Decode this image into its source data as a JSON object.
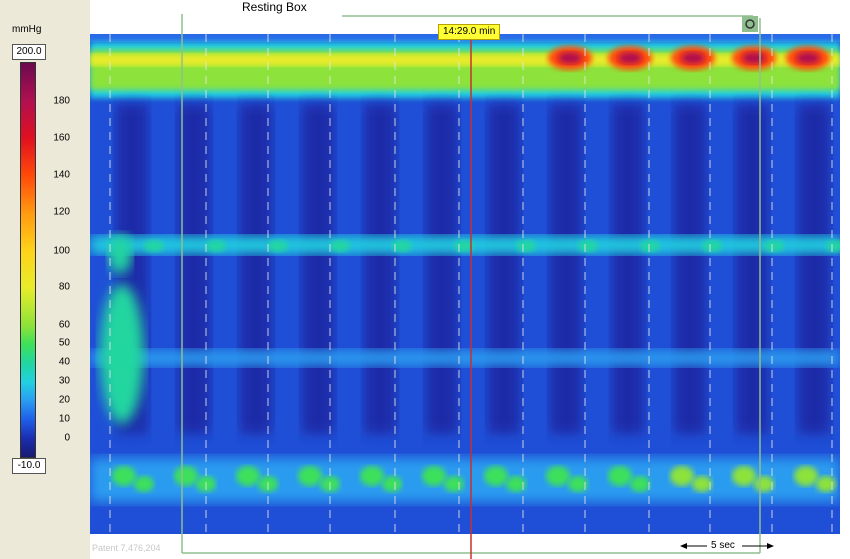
{
  "colorbar": {
    "unit": "mmHg",
    "max_label": "200.0",
    "min_label": "-10.0",
    "ticks": [
      180,
      160,
      140,
      120,
      100,
      80,
      60,
      50,
      40,
      30,
      20,
      10,
      0
    ],
    "stops": [
      {
        "v": -10,
        "color": "#1a1a70"
      },
      {
        "v": 0,
        "color": "#1b2eb0"
      },
      {
        "v": 10,
        "color": "#1f5ee8"
      },
      {
        "v": 20,
        "color": "#2a9cf0"
      },
      {
        "v": 30,
        "color": "#22d0e0"
      },
      {
        "v": 40,
        "color": "#22d6a0"
      },
      {
        "v": 50,
        "color": "#3ee05a"
      },
      {
        "v": 60,
        "color": "#8de23a"
      },
      {
        "v": 80,
        "color": "#e8ec2a"
      },
      {
        "v": 100,
        "color": "#ffd21a"
      },
      {
        "v": 120,
        "color": "#ff9a10"
      },
      {
        "v": 140,
        "color": "#ff4a0a"
      },
      {
        "v": 160,
        "color": "#e01020"
      },
      {
        "v": 180,
        "color": "#b01050"
      },
      {
        "v": 200,
        "color": "#6a0a50"
      }
    ]
  },
  "chart_data": {
    "type": "heatmap",
    "z_unit": "mmHg",
    "z_range": [
      -10,
      200
    ],
    "bands": [
      {
        "label": "",
        "pressure": 70
      },
      {
        "label": "",
        "pressure": 25
      },
      {
        "label": "",
        "pressure": 35
      },
      {
        "label": "",
        "pressure": 18
      }
    ],
    "upper_sphincter_hotspots_pressure": [
      180,
      175,
      172,
      170,
      168
    ],
    "swallow_count": 12
  },
  "annotations": {
    "resting_box": "Resting Box",
    "time_marker": "14:29.0 min",
    "scale_bar": "5 sec",
    "watermark": "Patent 7,476,204"
  },
  "colors": {
    "marker_line": "#c83030",
    "box_line": "#8fbf8f",
    "dash_line": "#e6e6e6"
  }
}
